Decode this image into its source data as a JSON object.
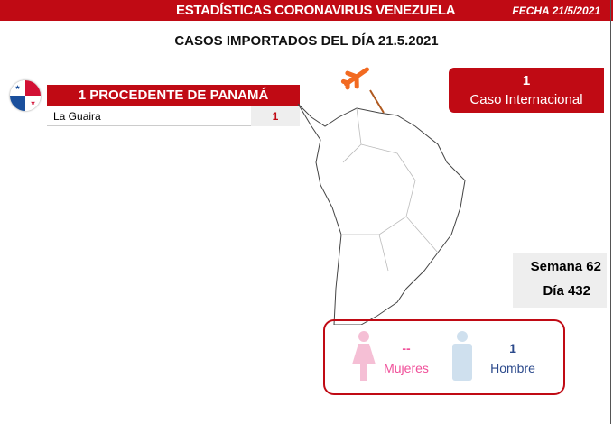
{
  "header": {
    "title": "ESTADÍSTICAS CORONAVIRUS VENEZUELA",
    "date": "FECHA 21/5/2021"
  },
  "subtitle": "CASOS IMPORTADOS DEL DÍA  21.5.2021",
  "origin": {
    "title": "1 PROCEDENTE DE PANAMÁ",
    "flag_icon": "panama-flag-icon",
    "rows": [
      {
        "state": "La Guaira",
        "count": "1"
      }
    ]
  },
  "international": {
    "count": "1",
    "label": "Caso Internacional"
  },
  "period": {
    "week": "Semana 62",
    "day": "Día 432"
  },
  "gender": {
    "women_value": "--",
    "women_label": "Mujeres",
    "men_value": "1",
    "men_label": "Hombre"
  },
  "colors": {
    "brand": "#c00a14",
    "women": "#f080b0",
    "men": "#2c4a8c",
    "plane": "#f26a21"
  }
}
